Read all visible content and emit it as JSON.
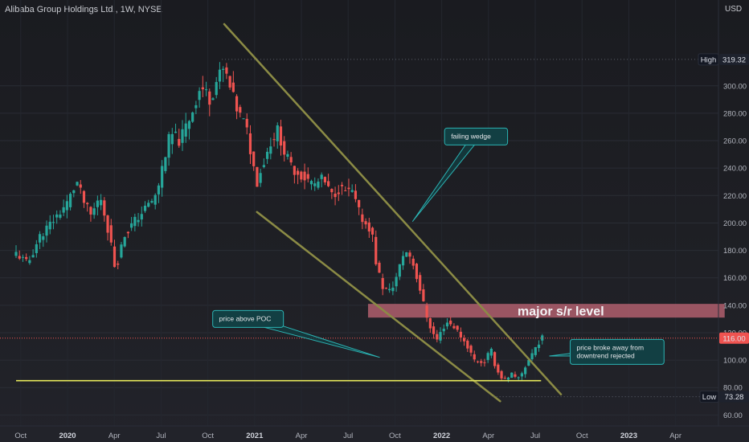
{
  "header": {
    "title": "Alibaba Group Holdings Ltd., 1W, NYSE",
    "currency": "USD"
  },
  "colors": {
    "up": "#26a69a",
    "down": "#ef5350",
    "wedge": "#8b8b45",
    "poc": "#e6e85a",
    "zone": "#c96a7a",
    "note_border": "#2bb3b3",
    "note_fill": "#123f43",
    "price_badge": "#ef5350",
    "extreme_badge": "#131722"
  },
  "chart_data": {
    "type": "candlestick",
    "title": "Alibaba Group Holdings Ltd., 1W, NYSE",
    "unit": "USD",
    "interval": "1W",
    "y_ticks": [
      60,
      80,
      100,
      120,
      140,
      160,
      180,
      200,
      220,
      240,
      260,
      280,
      300
    ],
    "ylim": [
      52,
      345
    ],
    "x_ticks": [
      {
        "label": "Oct",
        "bold": false,
        "t": 0.2
      },
      {
        "label": "2020",
        "bold": true,
        "t": 2.2
      },
      {
        "label": "Apr",
        "bold": false,
        "t": 4.2
      },
      {
        "label": "Jul",
        "bold": false,
        "t": 6.2
      },
      {
        "label": "Oct",
        "bold": false,
        "t": 8.2
      },
      {
        "label": "2021",
        "bold": true,
        "t": 10.2
      },
      {
        "label": "Apr",
        "bold": false,
        "t": 12.2
      },
      {
        "label": "Jul",
        "bold": false,
        "t": 14.2
      },
      {
        "label": "Oct",
        "bold": false,
        "t": 16.2
      },
      {
        "label": "2022",
        "bold": true,
        "t": 18.2
      },
      {
        "label": "Apr",
        "bold": false,
        "t": 20.2
      },
      {
        "label": "Jul",
        "bold": false,
        "t": 22.2
      },
      {
        "label": "Oct",
        "bold": false,
        "t": 24.2
      },
      {
        "label": "2023",
        "bold": true,
        "t": 26.2
      },
      {
        "label": "Apr",
        "bold": false,
        "t": 28.2
      }
    ],
    "price_path": [
      [
        0.0,
        178
      ],
      [
        0.5,
        170
      ],
      [
        1.0,
        190
      ],
      [
        1.5,
        200
      ],
      [
        2.2,
        215
      ],
      [
        2.6,
        230
      ],
      [
        2.9,
        215
      ],
      [
        3.2,
        205
      ],
      [
        3.6,
        220
      ],
      [
        4.0,
        190
      ],
      [
        4.25,
        165
      ],
      [
        4.6,
        190
      ],
      [
        5.0,
        200
      ],
      [
        5.5,
        210
      ],
      [
        6.0,
        220
      ],
      [
        6.3,
        245
      ],
      [
        6.6,
        265
      ],
      [
        7.0,
        260
      ],
      [
        7.5,
        280
      ],
      [
        7.9,
        300
      ],
      [
        8.3,
        290
      ],
      [
        8.6,
        305
      ],
      [
        8.9,
        312
      ],
      [
        9.2,
        295
      ],
      [
        9.5,
        280
      ],
      [
        9.7,
        275
      ],
      [
        9.9,
        265
      ],
      [
        10.1,
        245
      ],
      [
        10.3,
        230
      ],
      [
        10.6,
        245
      ],
      [
        10.9,
        260
      ],
      [
        11.2,
        268
      ],
      [
        11.5,
        250
      ],
      [
        11.8,
        240
      ],
      [
        12.1,
        236
      ],
      [
        12.4,
        232
      ],
      [
        12.8,
        228
      ],
      [
        13.1,
        232
      ],
      [
        13.5,
        220
      ],
      [
        13.8,
        225
      ],
      [
        14.2,
        222
      ],
      [
        14.4,
        222
      ],
      [
        14.6,
        210
      ],
      [
        14.9,
        200
      ],
      [
        15.2,
        195
      ],
      [
        15.4,
        170
      ],
      [
        15.7,
        152
      ],
      [
        16.0,
        150
      ],
      [
        16.3,
        162
      ],
      [
        16.6,
        180
      ],
      [
        16.9,
        175
      ],
      [
        17.3,
        150
      ],
      [
        17.5,
        135
      ],
      [
        17.8,
        120
      ],
      [
        18.0,
        115
      ],
      [
        18.4,
        128
      ],
      [
        18.7,
        125
      ],
      [
        19.0,
        118
      ],
      [
        19.3,
        110
      ],
      [
        19.6,
        100
      ],
      [
        20.0,
        98
      ],
      [
        20.3,
        108
      ],
      [
        20.5,
        95
      ],
      [
        20.7,
        88
      ],
      [
        21.0,
        85
      ],
      [
        21.2,
        90
      ],
      [
        21.4,
        85
      ],
      [
        21.6,
        90
      ],
      [
        21.8,
        96
      ],
      [
        22.0,
        103
      ],
      [
        22.3,
        112
      ],
      [
        22.5,
        116
      ]
    ],
    "high": {
      "label": "High",
      "value": 319.32,
      "value_text": "319.32",
      "t": 8.8
    },
    "low": {
      "label": "Low",
      "value": 73.28,
      "value_text": "73.28",
      "t": 20.4
    },
    "last": {
      "value": 116.0,
      "value_text": "116.00"
    },
    "wedge": {
      "upper": [
        [
          8.9,
          345
        ],
        [
          23.3,
          75
        ]
      ],
      "lower": [
        [
          10.3,
          208
        ],
        [
          20.7,
          70
        ]
      ]
    },
    "poc": {
      "value": 85.0,
      "t_start": 0,
      "t_end": 22.45
    },
    "zone": {
      "label": "major s/r level",
      "low": 131,
      "high": 141,
      "t_start": 15.05,
      "t_end": 30.3
    },
    "annotations": [
      {
        "text": "failing wedge",
        "box_t": 19.67,
        "box_v": 263,
        "tip_t": 16.95,
        "tip_v": 201
      },
      {
        "text": "price above POC",
        "box_t": 9.92,
        "box_v": 130,
        "tip_t": 15.55,
        "tip_v": 102
      },
      {
        "text": "price broke away from downtrend rejected",
        "box_t": 25.7,
        "box_v": 106,
        "tip_t": 22.8,
        "tip_v": 103
      }
    ]
  }
}
